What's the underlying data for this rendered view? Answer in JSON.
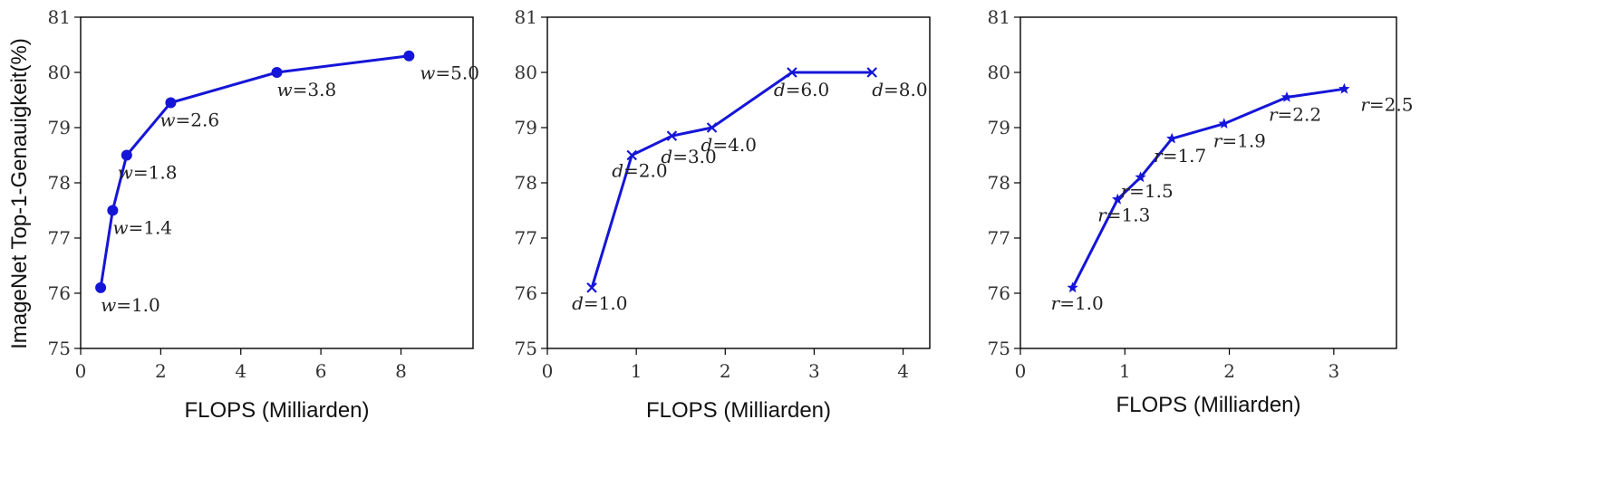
{
  "ylabel": "ImageNet Top-1-Genauigkeit(%)",
  "colors": {
    "series": "#1515d8"
  },
  "chart_data": [
    {
      "type": "line",
      "marker": "circle",
      "xlabel": "FLOPS (Milliarden)",
      "xlim": [
        0,
        9.8
      ],
      "ylim": [
        75,
        81
      ],
      "xticks": [
        "0",
        "2",
        "4",
        "6",
        "8"
      ],
      "yticks": [
        "75",
        "76",
        "77",
        "78",
        "79",
        "80",
        "81"
      ],
      "points": [
        {
          "x": 0.5,
          "y": 76.1,
          "var": "w",
          "value": "=1.0"
        },
        {
          "x": 0.8,
          "y": 77.5,
          "var": "w",
          "value": "=1.4"
        },
        {
          "x": 1.15,
          "y": 78.5,
          "var": "w",
          "value": "=1.8"
        },
        {
          "x": 2.25,
          "y": 79.45,
          "var": "w",
          "value": "=2.6"
        },
        {
          "x": 4.9,
          "y": 80.0,
          "var": "w",
          "value": "=3.8"
        },
        {
          "x": 8.2,
          "y": 80.3,
          "var": "w",
          "value": "=5.0"
        }
      ]
    },
    {
      "type": "line",
      "marker": "x",
      "xlabel": "FLOPS (Milliarden)",
      "xlim": [
        0,
        4.3
      ],
      "ylim": [
        75,
        81
      ],
      "xticks": [
        "0",
        "1",
        "2",
        "3",
        "4"
      ],
      "yticks": [
        "75",
        "76",
        "77",
        "78",
        "79",
        "80",
        "81"
      ],
      "points": [
        {
          "x": 0.5,
          "y": 76.1,
          "var": "d",
          "value": "=1.0"
        },
        {
          "x": 0.95,
          "y": 78.5,
          "var": "d",
          "value": "=2.0"
        },
        {
          "x": 1.4,
          "y": 78.85,
          "var": "d",
          "value": "=3.0"
        },
        {
          "x": 1.85,
          "y": 79.0,
          "var": "d",
          "value": "=4.0"
        },
        {
          "x": 2.75,
          "y": 80.0,
          "var": "d",
          "value": "=6.0"
        },
        {
          "x": 3.65,
          "y": 80.0,
          "var": "d",
          "value": "=8.0"
        }
      ]
    },
    {
      "type": "line",
      "marker": "star",
      "xlabel": "FLOPS (Milliarden)",
      "xlim": [
        0,
        3.6
      ],
      "ylim": [
        75,
        81
      ],
      "xticks": [
        "0",
        "1",
        "2",
        "3"
      ],
      "yticks": [
        "75",
        "76",
        "77",
        "78",
        "79",
        "80",
        "81"
      ],
      "points": [
        {
          "x": 0.5,
          "y": 76.1,
          "var": "r",
          "value": "=1.0"
        },
        {
          "x": 0.93,
          "y": 77.7,
          "var": "r",
          "value": "=1.3"
        },
        {
          "x": 1.15,
          "y": 78.1,
          "var": "r",
          "value": "=1.5"
        },
        {
          "x": 1.45,
          "y": 78.8,
          "var": "r",
          "value": "=1.7"
        },
        {
          "x": 1.95,
          "y": 79.07,
          "var": "r",
          "value": "=1.9"
        },
        {
          "x": 2.55,
          "y": 79.55,
          "var": "r",
          "value": "=2.2"
        },
        {
          "x": 3.1,
          "y": 79.7,
          "var": "r",
          "value": "=2.5"
        }
      ]
    }
  ]
}
